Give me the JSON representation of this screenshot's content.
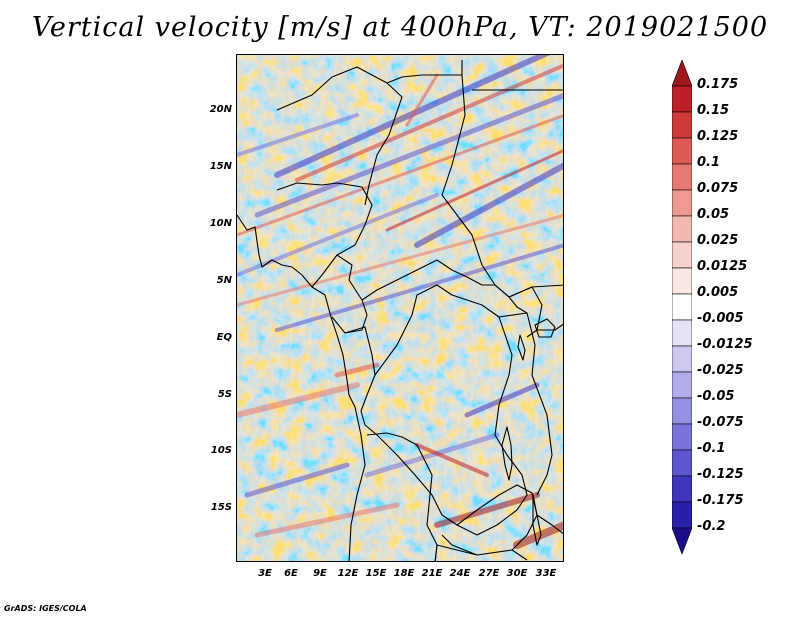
{
  "title": "Vertical velocity [m/s] at 400hPa, VT: 2019021500",
  "credit": "GrADS: IGES/COLA",
  "map": {
    "lat_labels": [
      "20N",
      "15N",
      "10N",
      "5N",
      "EQ",
      "5S",
      "10S",
      "15S"
    ],
    "lon_labels": [
      "3E",
      "6E",
      "9E",
      "12E",
      "15E",
      "18E",
      "21E",
      "24E",
      "27E",
      "30E",
      "33E"
    ],
    "lon_range": [
      0,
      34.5
    ],
    "lat_range": [
      -19.5,
      24.5
    ],
    "field": "Vertical velocity at 400hPa"
  },
  "colorbar": {
    "labels": [
      "0.175",
      "0.15",
      "0.125",
      "0.1",
      "0.075",
      "0.05",
      "0.025",
      "0.0125",
      "0.005",
      "-0.005",
      "-0.0125",
      "-0.025",
      "-0.05",
      "-0.075",
      "-0.1",
      "-0.125",
      "-0.175",
      "-0.2"
    ],
    "colors": [
      "#a0171c",
      "#bd2127",
      "#d13a3a",
      "#de5a55",
      "#e67a72",
      "#ee9a92",
      "#f3b8b0",
      "#f7d2cd",
      "#fbe7e4",
      "#ffffff",
      "#e4e2f6",
      "#cdc8f0",
      "#b2acea",
      "#9690e2",
      "#7a74d8",
      "#5e56cc",
      "#3f36bd",
      "#2a1fa8",
      "#1a0d8c"
    ]
  }
}
